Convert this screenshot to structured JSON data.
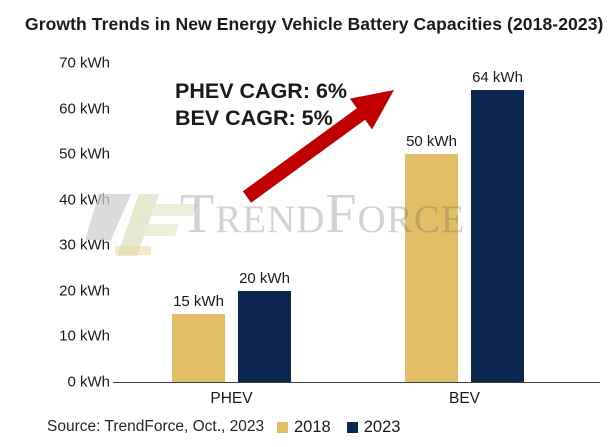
{
  "title": "Growth Trends in New Energy Vehicle Battery Capacities (2018-2023)",
  "chart_data": {
    "type": "bar",
    "categories": [
      "PHEV",
      "BEV"
    ],
    "series": [
      {
        "name": "2018",
        "values": [
          15,
          50
        ],
        "color": "#E2BE67"
      },
      {
        "name": "2023",
        "values": [
          20,
          64
        ],
        "color": "#0B2750"
      }
    ],
    "unit": "kWh",
    "ylim": [
      0,
      70
    ],
    "ytick_step": 10,
    "ytick_labels": [
      "0 kWh",
      "10 kWh",
      "20 kWh",
      "30 kWh",
      "40 kWh",
      "50 kWh",
      "60 kWh",
      "70 kWh"
    ],
    "bar_value_labels": [
      [
        "15 kWh",
        "50 kWh"
      ],
      [
        "20 kWh",
        "64 kWh"
      ]
    ],
    "grid": false,
    "legend_position": "bottom"
  },
  "annotation": {
    "line1": "PHEV CAGR: 6%",
    "line2": "BEV CAGR: 5%",
    "arrow_color": "#C00000"
  },
  "watermark": {
    "text": "TrendForce"
  },
  "source": "Source: TrendForce, Oct., 2023",
  "colors": {
    "bar_2018": "#E2BE67",
    "bar_2023": "#0B2750",
    "axis_line": "#3d3d3d",
    "arrow": "#C00000"
  }
}
